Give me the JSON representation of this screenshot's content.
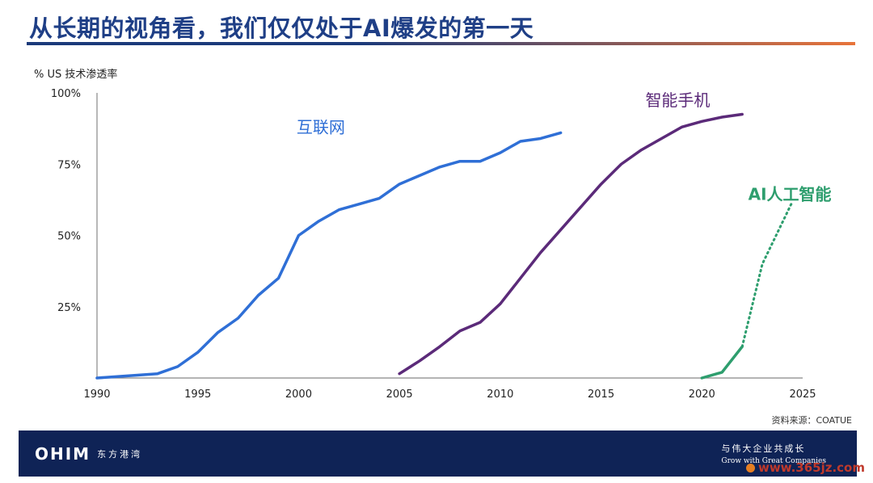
{
  "slide_title": "从长期的视角看，我们仅仅处于AI爆发的第一天",
  "source": "资料来源：COATUE",
  "footer": {
    "logo": "OHIM",
    "logo_sub": "东方港湾",
    "slogan_cn": "与伟大企业共成长",
    "slogan_en": "Grow with Great Companies"
  },
  "watermark": "www.365jz.com",
  "colors": {
    "internet": "#2f6fd6",
    "smartphone": "#5b2a79",
    "ai": "#2e9e6e"
  },
  "chart_data": {
    "type": "line",
    "ylabel": "% US 技术渗透率",
    "xlim": [
      1990,
      2025
    ],
    "ylim": [
      0,
      100
    ],
    "xticks": [
      1990,
      1995,
      2000,
      2005,
      2010,
      2015,
      2020,
      2025
    ],
    "yticks": [
      25,
      50,
      75,
      100
    ],
    "ytick_labels": [
      "25%",
      "50%",
      "75%",
      "100%"
    ],
    "grid": false,
    "series": [
      {
        "name": "互联网",
        "style": "solid",
        "color": "#2f6fd6",
        "x": [
          1990,
          1991,
          1992,
          1993,
          1994,
          1995,
          1996,
          1997,
          1998,
          1999,
          2000,
          2001,
          2002,
          2003,
          2004,
          2005,
          2006,
          2007,
          2008,
          2009,
          2010,
          2011,
          2012,
          2013
        ],
        "y": [
          0,
          0.5,
          1,
          1.5,
          4,
          9,
          16,
          21,
          29,
          35,
          50,
          55,
          59,
          61,
          63,
          68,
          71,
          74,
          76,
          76,
          79,
          83,
          84,
          86
        ]
      },
      {
        "name": "智能手机",
        "style": "solid",
        "color": "#5b2a79",
        "x": [
          2005,
          2006,
          2007,
          2008,
          2009,
          2010,
          2011,
          2012,
          2013,
          2014,
          2015,
          2016,
          2017,
          2018,
          2019,
          2020,
          2021,
          2022
        ],
        "y": [
          1.5,
          6,
          11,
          16.5,
          19.5,
          26,
          35,
          44,
          52,
          60,
          68,
          75,
          80,
          84,
          88,
          90,
          91.5,
          92.5
        ]
      },
      {
        "name": "AI人工智能",
        "style": "mixed",
        "color": "#2e9e6e",
        "x": [
          2020,
          2021,
          2022,
          2023,
          2024.5
        ],
        "y": [
          0,
          2,
          11,
          40,
          62
        ],
        "dotted_from_x": 2022
      }
    ]
  }
}
